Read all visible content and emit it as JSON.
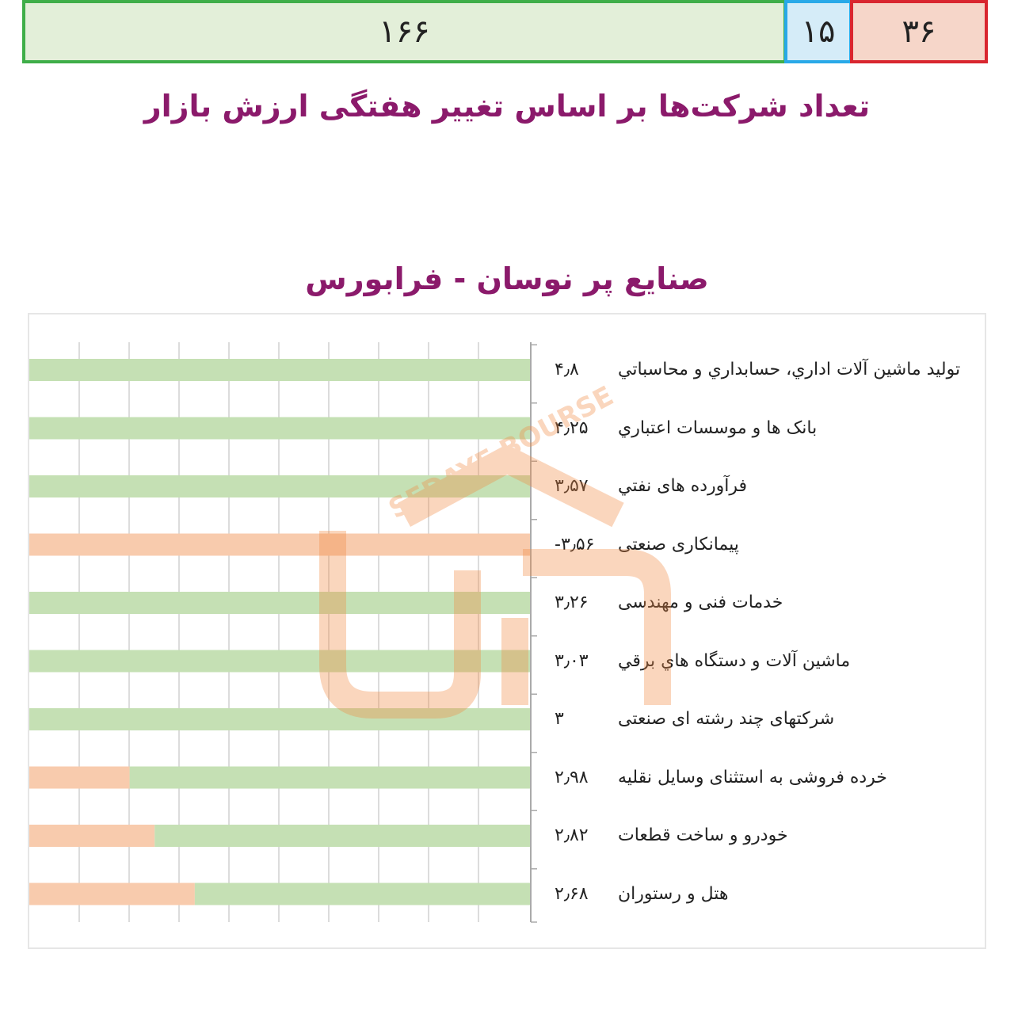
{
  "titles": {
    "main": "تعداد شرکت‌ها بر اساس تغییر هفتگی ارزش بازار",
    "sub": "صنایع پر نوسان - فرابورس"
  },
  "summary": {
    "up": "۱۶۶",
    "flat": "۱۵",
    "down": "۳۶",
    "colors": {
      "up": "#3fae49",
      "flat": "#29a9e8",
      "down": "#d9262f"
    }
  },
  "watermark_text": "SEDAYE BOURSE",
  "chart_data": {
    "type": "bar",
    "orientation": "horizontal",
    "grid": true,
    "categories": [
      "تولید ماشین آلات اداري، حسابداري و محاسباتي",
      "بانک ها و موسسات اعتباري",
      "فرآورده های نفتي",
      "پیمانکاری صنعتی",
      "خدمات فنی و مهندسی",
      "ماشین آلات و دستگاه هاي برقي",
      "شرکتهای چند رشته ای صنعتی",
      "خرده فروشی به استثنای وسایل نقلیه",
      "خودرو و ساخت قطعات",
      "هتل و رستوران"
    ],
    "value_labels": [
      "۴٫۸",
      "۴٫۲۵",
      "۳٫۵۷",
      "-۳٫۵۶",
      "۳٫۲۶",
      "۳٫۰۳",
      "۳",
      "۲٫۹۸",
      "۲٫۸۲",
      "۲٫۶۸"
    ],
    "values": [
      4.8,
      4.25,
      3.57,
      -3.56,
      3.26,
      3.03,
      3,
      2.98,
      2.82,
      2.68
    ],
    "green_share": [
      1,
      1,
      1,
      0,
      1,
      1,
      1,
      0.8,
      0.75,
      0.67
    ],
    "colors": {
      "positive": "#c5e0b4",
      "negative": "#f8cbad"
    }
  }
}
